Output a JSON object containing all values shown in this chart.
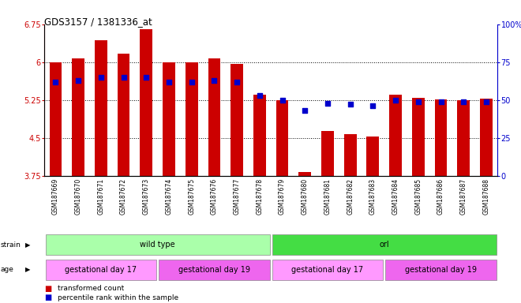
{
  "title": "GDS3157 / 1381336_at",
  "samples": [
    "GSM187669",
    "GSM187670",
    "GSM187671",
    "GSM187672",
    "GSM187673",
    "GSM187674",
    "GSM187675",
    "GSM187676",
    "GSM187677",
    "GSM187678",
    "GSM187679",
    "GSM187680",
    "GSM187681",
    "GSM187682",
    "GSM187683",
    "GSM187684",
    "GSM187685",
    "GSM187686",
    "GSM187687",
    "GSM187688"
  ],
  "transformed_count": [
    6.0,
    6.07,
    6.43,
    6.17,
    6.65,
    6.0,
    6.0,
    6.07,
    5.97,
    5.36,
    5.24,
    3.83,
    4.63,
    4.58,
    4.53,
    5.36,
    5.3,
    5.26,
    5.25,
    5.27
  ],
  "percentile_rank": [
    62,
    63,
    65,
    65,
    65,
    62,
    62,
    63,
    62,
    53,
    50,
    43,
    48,
    47,
    46,
    50,
    49,
    49,
    49,
    49
  ],
  "ymin": 3.75,
  "ymax": 6.75,
  "yticks": [
    3.75,
    4.5,
    5.25,
    6.0,
    6.75
  ],
  "ytick_labels": [
    "3.75",
    "4.5",
    "5.25",
    "6",
    "6.75"
  ],
  "right_yticks": [
    0,
    25,
    50,
    75,
    100
  ],
  "right_ytick_labels": [
    "0",
    "25",
    "50",
    "75",
    "100%"
  ],
  "bar_color": "#CC0000",
  "dot_color": "#0000CC",
  "strain_groups": [
    {
      "label": "wild type",
      "start": 0,
      "end": 10,
      "color": "#AAFFAA"
    },
    {
      "label": "orl",
      "start": 10,
      "end": 20,
      "color": "#44DD44"
    }
  ],
  "age_groups": [
    {
      "label": "gestational day 17",
      "start": 0,
      "end": 5,
      "color": "#FF99FF"
    },
    {
      "label": "gestational day 19",
      "start": 5,
      "end": 10,
      "color": "#EE66EE"
    },
    {
      "label": "gestational day 17",
      "start": 10,
      "end": 15,
      "color": "#FF99FF"
    },
    {
      "label": "gestational day 19",
      "start": 15,
      "end": 20,
      "color": "#EE66EE"
    }
  ],
  "legend_items": [
    {
      "label": "transformed count",
      "color": "#CC0000"
    },
    {
      "label": "percentile rank within the sample",
      "color": "#0000CC"
    }
  ],
  "bg_color": "#FFFFFF",
  "dot_size": 18,
  "bar_width": 0.55
}
